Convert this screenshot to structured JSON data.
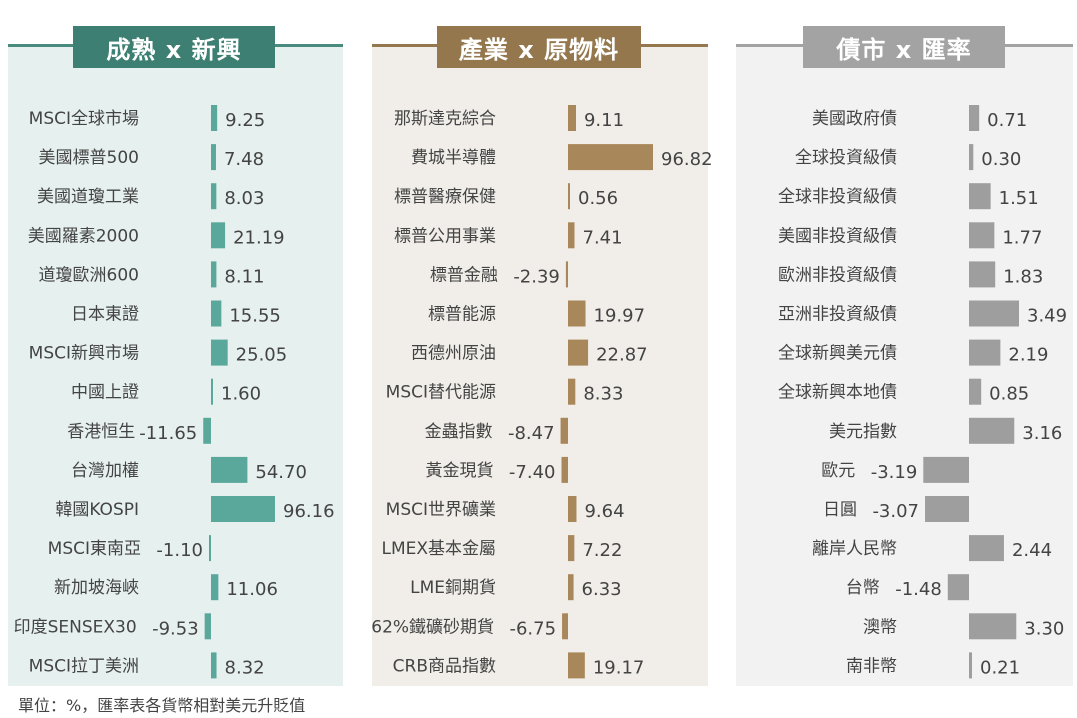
{
  "footnote": "單位：%，匯率表各貨幣相對美元升貶值",
  "chart_data": [
    {
      "type": "bar",
      "title": "成熟 x 新興",
      "color": "#5aa89c",
      "header_color": "#3d7f72",
      "panel_bg": "#e6f0ee",
      "categories": [
        "MSCI全球市場",
        "美國標普500",
        "美國道瓊工業",
        "美國羅素2000",
        "道瓊歐洲600",
        "日本東證",
        "MSCI新興市場",
        "中國上證",
        "香港恒生",
        "台灣加權",
        "韓國KOSPI",
        "MSCI東南亞",
        "新加坡海峽",
        "印度SENSEX30",
        "MSCI拉丁美洲"
      ],
      "value_labels": [
        "9.25",
        "7.48",
        "8.03",
        "21.19",
        "8.11",
        "15.55",
        "25.05",
        "1.60",
        "-11.65",
        "54.70",
        "96.16",
        "-1.10",
        "11.06",
        "-9.53",
        "8.32"
      ],
      "values": [
        9.25,
        7.48,
        8.03,
        21.19,
        8.11,
        15.55,
        25.05,
        1.6,
        -11.65,
        54.7,
        96.16,
        -1.1,
        11.06,
        -9.53,
        8.32
      ]
    },
    {
      "type": "bar",
      "title": "產業 x 原物料",
      "color": "#a8875a",
      "header_color": "#94774c",
      "panel_bg": "#f1eeea",
      "categories": [
        "那斯達克綜合",
        "費城半導體",
        "標普醫療保健",
        "標普公用事業",
        "標普金融",
        "標普能源",
        "西德州原油",
        "MSCI替代能源",
        "金蟲指數",
        "黃金現貨",
        "MSCI世界礦業",
        "LMEX基本金屬",
        "LME銅期貨",
        "62%鐵礦砂期貨",
        "CRB商品指數"
      ],
      "value_labels": [
        "9.11",
        "96.82",
        "0.56",
        "7.41",
        "-2.39",
        "19.97",
        "22.87",
        "8.33",
        "-8.47",
        "-7.40",
        "9.64",
        "7.22",
        "6.33",
        "-6.75",
        "19.17"
      ],
      "values": [
        9.11,
        96.82,
        0.56,
        7.41,
        -2.39,
        19.97,
        22.87,
        8.33,
        -8.47,
        -7.4,
        9.64,
        7.22,
        6.33,
        -6.75,
        19.17
      ]
    },
    {
      "type": "bar",
      "title": "債市 x 匯率",
      "color": "#9e9e9e",
      "header_color": "#a3a3a3",
      "panel_bg": "#f2f2f2",
      "categories": [
        "美國政府債",
        "全球投資級債",
        "全球非投資級債",
        "美國非投資級債",
        "歐洲非投資級債",
        "亞洲非投資級債",
        "全球新興美元債",
        "全球新興本地債",
        "美元指數",
        "歐元",
        "日圓",
        "離岸人民幣",
        "台幣",
        "澳幣",
        "南非幣"
      ],
      "value_labels": [
        "0.71",
        "0.30",
        "1.51",
        "1.77",
        "1.83",
        "3.49",
        "2.19",
        "0.85",
        "3.16",
        "-3.19",
        "-3.07",
        "2.44",
        "-1.48",
        "3.30",
        "0.21"
      ],
      "values": [
        0.71,
        0.3,
        1.51,
        1.77,
        1.83,
        3.49,
        2.19,
        0.85,
        3.16,
        -3.19,
        -3.07,
        2.44,
        -1.48,
        3.3,
        0.21
      ]
    }
  ]
}
